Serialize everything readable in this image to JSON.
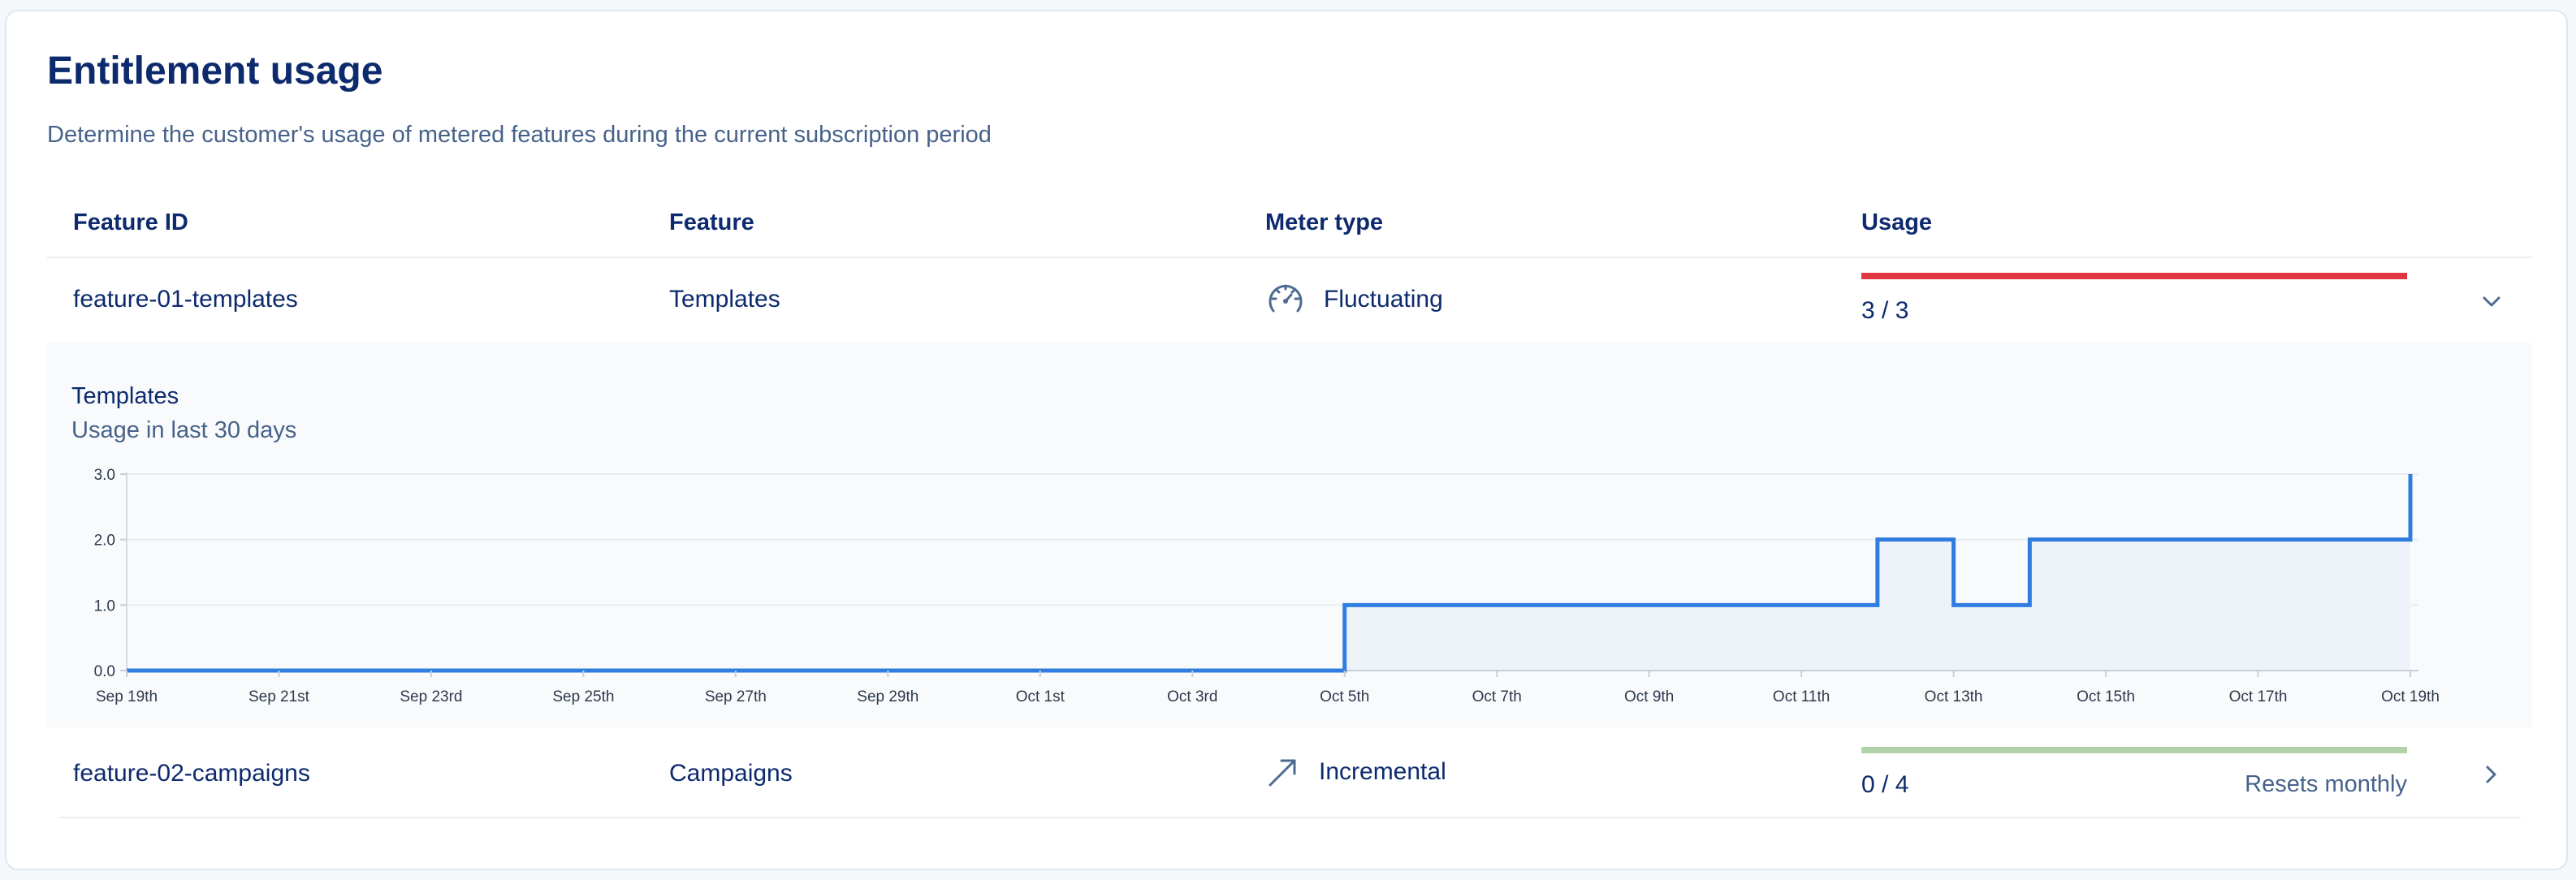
{
  "header": {
    "title": "Entitlement usage",
    "subtitle": "Determine the customer's usage of metered features during the current subscription period"
  },
  "table": {
    "columns": [
      "Feature ID",
      "Feature",
      "Meter type",
      "Usage"
    ],
    "rows": [
      {
        "feature_id": "feature-01-templates",
        "feature": "Templates",
        "meter_type": "Fluctuating",
        "meter_icon": "gauge-icon",
        "usage": "3 / 3",
        "usage_fraction": 1.0,
        "bar_color": "#e0363f",
        "resets": "",
        "expanded": true
      },
      {
        "feature_id": "feature-02-campaigns",
        "feature": "Campaigns",
        "meter_type": "Incremental",
        "meter_icon": "trend-arrow-icon",
        "usage": "0 / 4",
        "usage_fraction": 0.0,
        "bar_color": "#b2d3a8",
        "resets": "Resets monthly",
        "expanded": false
      }
    ]
  },
  "detail": {
    "title": "Templates",
    "subtitle": "Usage in last 30 days"
  },
  "chart_data": {
    "type": "line",
    "step": true,
    "title": "",
    "xlabel": "",
    "ylabel": "",
    "ylim": [
      0,
      3
    ],
    "yticks": [
      "0.0",
      "1.0",
      "2.0",
      "3.0"
    ],
    "xticks": [
      "Sep 19th",
      "Sep 21st",
      "Sep 23rd",
      "Sep 25th",
      "Sep 27th",
      "Sep 29th",
      "Oct 1st",
      "Oct 3rd",
      "Oct 5th",
      "Oct 7th",
      "Oct 9th",
      "Oct 11th",
      "Oct 13th",
      "Oct 15th",
      "Oct 17th",
      "Oct 19th"
    ],
    "series": [
      {
        "color": "#2f7de1",
        "fill": "#eef3f9",
        "points": [
          {
            "x": "Sep 19",
            "y": 0
          },
          {
            "x": "Oct 5",
            "y": 1
          },
          {
            "x": "Oct 12",
            "y": 2
          },
          {
            "x": "Oct 13",
            "y": 1
          },
          {
            "x": "Oct 14",
            "y": 2
          },
          {
            "x": "Oct 19",
            "y": 3
          }
        ]
      }
    ],
    "grid": true
  }
}
